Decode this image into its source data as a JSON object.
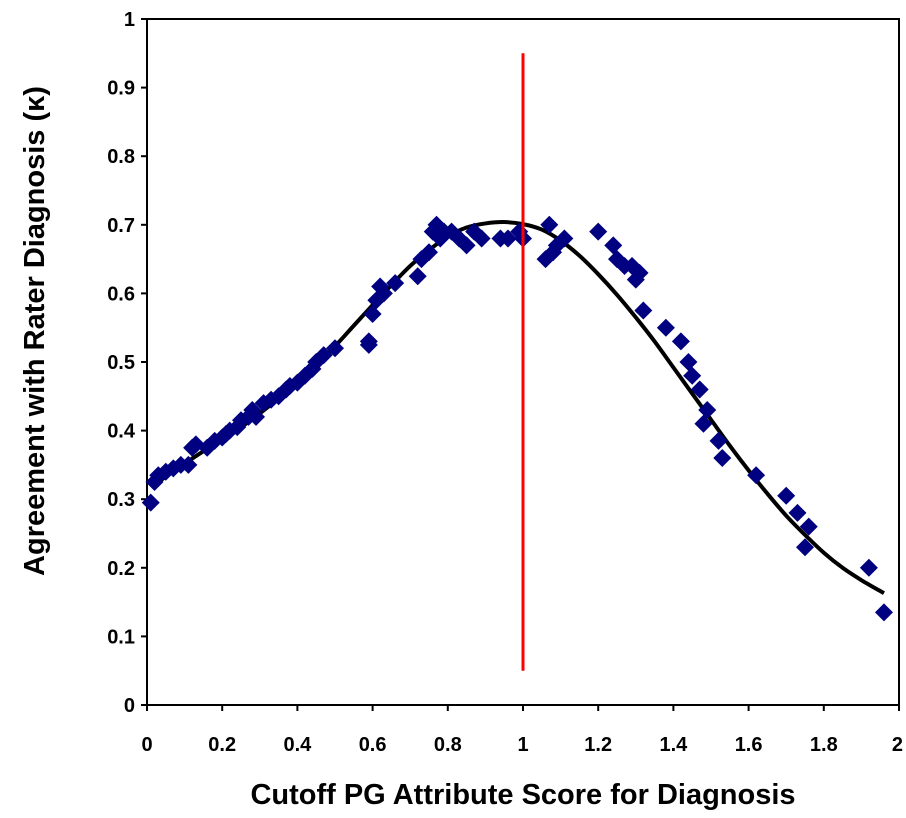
{
  "chart_data": {
    "type": "scatter",
    "title": "",
    "xlabel": "Cutoff PG Attribute Score for Diagnosis",
    "ylabel": "Agreement with Rater Diagnosis (κ)",
    "xlim": [
      0,
      2
    ],
    "ylim": [
      0,
      1
    ],
    "x_ticks": [
      "0",
      "0.2",
      "0.4",
      "0.6",
      "0.8",
      "1",
      "1.2",
      "1.4",
      "1.6",
      "1.8",
      "2"
    ],
    "y_ticks": [
      "0",
      "0.1",
      "0.2",
      "0.3",
      "0.4",
      "0.5",
      "0.6",
      "0.7",
      "0.8",
      "0.9",
      "1"
    ],
    "grid": false,
    "legend": "none",
    "colors": {
      "points": "#000080",
      "fit_curve": "#000000",
      "cutoff_line": "#ff0000"
    },
    "points": {
      "marker": "diamond",
      "x": [
        0.01,
        0.02,
        0.03,
        0.05,
        0.07,
        0.09,
        0.11,
        0.12,
        0.13,
        0.16,
        0.18,
        0.2,
        0.21,
        0.22,
        0.24,
        0.25,
        0.27,
        0.28,
        0.29,
        0.31,
        0.33,
        0.35,
        0.37,
        0.38,
        0.4,
        0.42,
        0.44,
        0.45,
        0.47,
        0.5,
        0.59,
        0.59,
        0.6,
        0.61,
        0.62,
        0.63,
        0.66,
        0.72,
        0.73,
        0.75,
        0.76,
        0.77,
        0.78,
        0.79,
        0.81,
        0.83,
        0.85,
        0.87,
        0.89,
        0.94,
        0.96,
        0.99,
        1.0,
        1.06,
        1.07,
        1.08,
        1.09,
        1.11,
        1.2,
        1.24,
        1.25,
        1.27,
        1.29,
        1.3,
        1.31,
        1.32,
        1.38,
        1.42,
        1.44,
        1.45,
        1.47,
        1.48,
        1.49,
        1.52,
        1.53,
        1.62,
        1.7,
        1.73,
        1.75,
        1.76,
        1.92,
        1.96
      ],
      "y": [
        0.295,
        0.325,
        0.335,
        0.34,
        0.345,
        0.35,
        0.35,
        0.375,
        0.38,
        0.375,
        0.385,
        0.39,
        0.395,
        0.4,
        0.405,
        0.415,
        0.42,
        0.43,
        0.42,
        0.44,
        0.445,
        0.45,
        0.46,
        0.465,
        0.47,
        0.48,
        0.49,
        0.5,
        0.51,
        0.52,
        0.53,
        0.525,
        0.57,
        0.59,
        0.61,
        0.6,
        0.615,
        0.625,
        0.65,
        0.66,
        0.69,
        0.7,
        0.68,
        0.69,
        0.69,
        0.68,
        0.67,
        0.69,
        0.68,
        0.68,
        0.68,
        0.69,
        0.68,
        0.65,
        0.7,
        0.66,
        0.67,
        0.68,
        0.69,
        0.67,
        0.65,
        0.64,
        0.64,
        0.62,
        0.63,
        0.575,
        0.55,
        0.53,
        0.5,
        0.48,
        0.46,
        0.41,
        0.43,
        0.385,
        0.36,
        0.335,
        0.305,
        0.28,
        0.23,
        0.26,
        0.2,
        0.135
      ]
    },
    "fit_curve": {
      "x": [
        0.02,
        0.05,
        0.1,
        0.15,
        0.2,
        0.25,
        0.3,
        0.35,
        0.4,
        0.45,
        0.5,
        0.55,
        0.6,
        0.65,
        0.7,
        0.75,
        0.8,
        0.85,
        0.9,
        0.95,
        1.0,
        1.05,
        1.1,
        1.15,
        1.2,
        1.25,
        1.3,
        1.35,
        1.4,
        1.45,
        1.5,
        1.55,
        1.6,
        1.65,
        1.7,
        1.75,
        1.8,
        1.85,
        1.9,
        1.96
      ],
      "y": [
        0.32,
        0.333,
        0.352,
        0.37,
        0.388,
        0.405,
        0.425,
        0.447,
        0.47,
        0.495,
        0.523,
        0.553,
        0.583,
        0.612,
        0.64,
        0.663,
        0.683,
        0.696,
        0.702,
        0.704,
        0.701,
        0.693,
        0.677,
        0.655,
        0.628,
        0.598,
        0.565,
        0.53,
        0.492,
        0.454,
        0.416,
        0.378,
        0.342,
        0.308,
        0.276,
        0.248,
        0.222,
        0.2,
        0.182,
        0.163
      ]
    },
    "cutoff_line": {
      "x": 1,
      "y_from": 0.05,
      "y_to": 0.95
    }
  }
}
